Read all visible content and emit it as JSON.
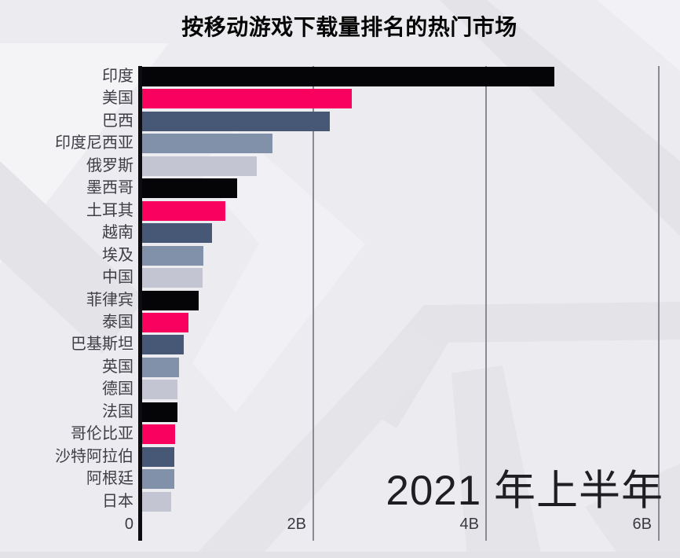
{
  "title": "按移动游戏下载量排名的热门市场",
  "period_label": "2021 年上半年",
  "axis": {
    "tick_labels": [
      "0",
      "2B",
      "4B",
      "6B"
    ],
    "tick_values": [
      0,
      2,
      4,
      6
    ],
    "unit": "B (billions of downloads)"
  },
  "palette": [
    "#050508",
    "#f8015f",
    "#475877",
    "#8091a9",
    "#c3c6d2"
  ],
  "chart_data": {
    "type": "bar",
    "orientation": "horizontal",
    "title": "按移动游戏下载量排名的热门市场",
    "annotation": "2021 年上半年",
    "categories": [
      "印度",
      "美国",
      "巴西",
      "印度尼西亚",
      "俄罗斯",
      "墨西哥",
      "土耳其",
      "越南",
      "埃及",
      "中国",
      "菲律宾",
      "泰国",
      "巴基斯坦",
      "英国",
      "德国",
      "法国",
      "哥伦比亚",
      "沙特阿拉伯",
      "阿根廷",
      "日本"
    ],
    "values_billions": [
      4.8,
      2.45,
      2.2,
      1.54,
      1.35,
      1.13,
      0.99,
      0.84,
      0.74,
      0.73,
      0.68,
      0.56,
      0.51,
      0.45,
      0.44,
      0.44,
      0.41,
      0.4,
      0.4,
      0.36
    ],
    "xlabel": "",
    "ylabel": "",
    "xlim": [
      0,
      6.25
    ],
    "gridlines": "vertical at 2B, 4B, 6B",
    "legend": false,
    "bar_color_cycle": [
      "#050508",
      "#f8015f",
      "#475877",
      "#8091a9",
      "#c3c6d2"
    ]
  }
}
